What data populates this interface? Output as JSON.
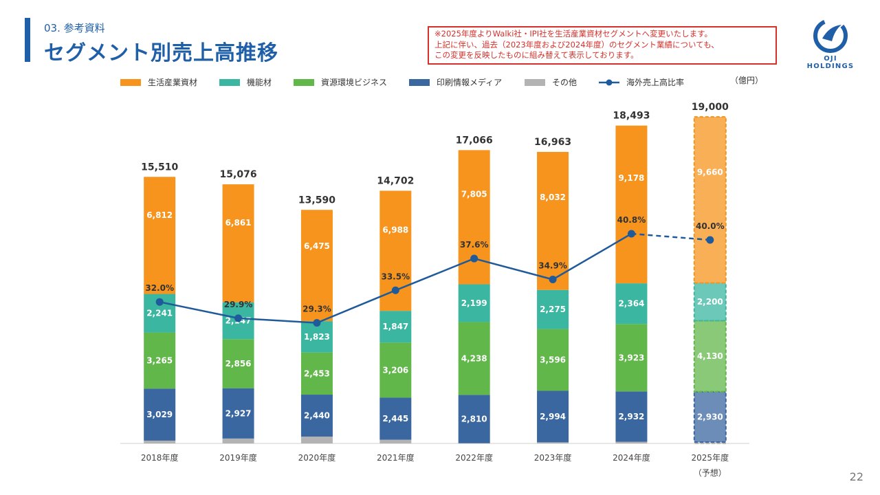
{
  "header": {
    "section": "03. 参考資料",
    "title": "セグメント別売上高推移"
  },
  "notice": {
    "lines": [
      "※2025年度よりWalki社・IPI社を生活産業資材セグメントへ変更いたします。",
      "上記に伴い、過去（2023年度および2024年度）のセグメント業績についても、",
      "この変更を反映したものに組み替えて表示しております。"
    ]
  },
  "logo": {
    "text": "OJI HOLDINGS",
    "icon": "oji-logo-icon"
  },
  "page_number": "22",
  "colors": {
    "accent": "#1f5fa8",
    "notice": "#d6302b",
    "orange": "#f7941d",
    "teal": "#3bb6a0",
    "green": "#62b74a",
    "blue": "#3a67a0",
    "gray": "#b3b3b3",
    "line": "#1f5a9a"
  },
  "chart_data": {
    "type": "bar",
    "stacked": true,
    "unit": "（億円）",
    "categories": [
      "2018年度",
      "2019年度",
      "2020年度",
      "2021年度",
      "2022年度",
      "2023年度",
      "2024年度",
      "2025年度"
    ],
    "category_notes": [
      "",
      "",
      "",
      "",
      "",
      "",
      "",
      "（予想）"
    ],
    "forecast_index": 7,
    "ylim": [
      0,
      20000
    ],
    "totals": [
      15510,
      15076,
      13590,
      14702,
      17066,
      16963,
      18493,
      19000
    ],
    "total_labels": [
      "15,510",
      "15,076",
      "13,590",
      "14,702",
      "17,066",
      "16,963",
      "18,493",
      "19,000"
    ],
    "series": [
      {
        "name": "印刷情報メディア",
        "color": "#3a67a0",
        "values": [
          3029,
          2927,
          2440,
          2445,
          2810,
          2994,
          2932,
          2930
        ],
        "labels": [
          "3,029",
          "2,927",
          "2,440",
          "2,445",
          "2,810",
          "2,994",
          "2,932",
          "2,930"
        ]
      },
      {
        "name": "資源環境ビジネス",
        "color": "#62b74a",
        "values": [
          3265,
          2856,
          2453,
          3206,
          4238,
          3596,
          3923,
          4130
        ],
        "labels": [
          "3,265",
          "2,856",
          "2,453",
          "3,206",
          "4,238",
          "3,596",
          "3,923",
          "4,130"
        ]
      },
      {
        "name": "機能材",
        "color": "#3bb6a0",
        "values": [
          2241,
          2147,
          1823,
          1847,
          2199,
          2275,
          2364,
          2200
        ],
        "labels": [
          "2,241",
          "2,147",
          "1,823",
          "1,847",
          "2,199",
          "2,275",
          "2,364",
          "2,200"
        ]
      },
      {
        "name": "生活産業資材",
        "color": "#f7941d",
        "values": [
          6812,
          6861,
          6475,
          6988,
          7805,
          8032,
          9178,
          9660
        ],
        "labels": [
          "6,812",
          "6,861",
          "6,475",
          "6,988",
          "7,805",
          "8,032",
          "9,178",
          "9,660"
        ]
      },
      {
        "name": "その他",
        "color": "#b3b3b3",
        "values": [
          163,
          285,
          399,
          216,
          14,
          66,
          96,
          80
        ],
        "labels": [
          "",
          "",
          "",
          "",
          "",
          "",
          "",
          ""
        ]
      }
    ],
    "stack_order": [
      4,
      0,
      1,
      2,
      3
    ],
    "legend": [
      {
        "name": "生活産業資材",
        "color": "#f7941d",
        "kind": "box"
      },
      {
        "name": "機能材",
        "color": "#3bb6a0",
        "kind": "box"
      },
      {
        "name": "資源環境ビジネス",
        "color": "#62b74a",
        "kind": "box"
      },
      {
        "name": "印刷情報メディア",
        "color": "#3a67a0",
        "kind": "box"
      },
      {
        "name": "その他",
        "color": "#b3b3b3",
        "kind": "box"
      },
      {
        "name": "海外売上高比率",
        "color": "#1f5a9a",
        "kind": "line"
      }
    ],
    "line_series": {
      "name": "海外売上高比率",
      "unit": "%",
      "values": [
        32.0,
        29.9,
        29.3,
        33.5,
        37.6,
        34.9,
        40.8,
        40.0
      ],
      "labels": [
        "32.0%",
        "29.9%",
        "29.3%",
        "33.5%",
        "37.6%",
        "34.9%",
        "40.8%",
        "40.0%"
      ],
      "ylim": [
        0,
        100
      ],
      "forecast_dashed_from": 6
    }
  }
}
